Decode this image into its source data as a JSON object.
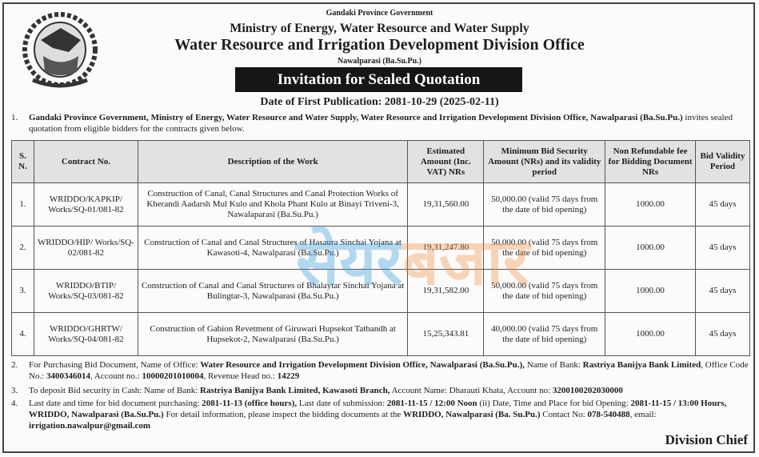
{
  "header": {
    "government": "Gandaki Province Government",
    "ministry": "Ministry of Energy, Water Resource and Water Supply",
    "office": "Water Resource and Irrigation Development Division Office",
    "location": "Nawalparasi (Ba.Su.Pu.)",
    "banner": "Invitation for Sealed Quotation",
    "publication_date": "Date of First Publication: 2081-10-29 (2025-02-11)"
  },
  "para1": {
    "num": "1.",
    "bold": "Gandaki Province Government, Ministry of Energy, Water Resource and Water Supply, Water Resource and Irrigation Development Division Office, Nawalparasi (Ba.Su.Pu.)",
    "rest": " invites sealed quotation from eligible bidders for the contracts given below."
  },
  "table": {
    "headers": [
      "S. N.",
      "Contract No.",
      "Description of the Work",
      "Estimated Amount (Inc. VAT) NRs",
      "Minimum Bid Security Amount (NRs) and its validity period",
      "Non Refundable fee for Bidding Document NRs",
      "Bid Validity Period"
    ],
    "rows": [
      [
        "1.",
        "WRIDDO/KAPKIP/ Works/SQ-01/081-82",
        "Construction of Canal, Canal Structures and Canal Protection Works of Kherandi Aadarsh Mul Kulo and Khola Phant Kulo at Binayi Triveni-3, Nawalaparasi (Ba.Su.Pu.)",
        "19,31,560.00",
        "50,000.00 (valid 75 days from the date of bid opening)",
        "1000.00",
        "45 days"
      ],
      [
        "2.",
        "WRIDDO/HIP/ Works/SQ-02/081-82",
        "Construction of Canal and Canal Structures of Hasaura Sinchai Yojana at Kawasoti-4, Nawalparasi (Ba.Su.Pu.)",
        "19,31,247.80",
        "50,000.00 (valid 75 days from the date of bid opening)",
        "1000.00",
        "45 days"
      ],
      [
        "3.",
        "WRIDDO/BTIP/ Works/SQ-03/081-82",
        "Construction of Canal and Canal Structures of Bhalaytar Sinchai Yojana at Bulingtar-3, Nawalparasi (Ba.Su.Pu.)",
        "19,31,582.00",
        "50,000.00 (valid 75 days from the date of bid opening)",
        "1000.00",
        "45 days"
      ],
      [
        "4.",
        "WRIDDO/GHRTW/ Works/SQ-04/081-82",
        "Construction of Gabion Revetment of Giruwari Hupsekot Tatbandh at Hupsekot-2, Nawalparasi (Ba.Su.Pu.)",
        "15,25,343.81",
        "40,000.00 (valid 75 days from the date of bid opening)",
        "1000.00",
        "45 days"
      ]
    ]
  },
  "para2": {
    "num": "2.",
    "s": [
      "For Purchasing Bid Document, Name of Office: ",
      "Water Resource and Irrigation Development Division Office, Nawalparasi (Ba.Su.Pu.),",
      " Name of Bank: ",
      "Rastriya Banijya Bank Limited",
      ", Office Code No.: ",
      "3400346014",
      ", Account no.: ",
      "10000201010004",
      ", Revenue Head no.: ",
      "14229"
    ]
  },
  "para3": {
    "num": "3.",
    "s": [
      "To deposit Bid security in Cash: Name of Bank: ",
      "Rastriya Banijya Bank Limited, Kawasoti Branch,",
      " Account Name: Dharauti Khata, Account no: ",
      "3200100202030000"
    ]
  },
  "para4": {
    "num": "4.",
    "s": [
      "Last date and time for bid document purchasing: ",
      "2081-11-13 (office hours),",
      " Last date of submission: ",
      "2081-11-15 / 12:00 Noon",
      " (ii) Date, Time and Place for bid Opening: ",
      "2081-11-15 / 13:00 Hours, WRIDDO, Nawalparasi (Ba.Su.Pu.)",
      " For detail information, please inspect the bidding documents at the ",
      "WRIDDO, Nawalparasi (Ba. Su.Pu.)",
      " Contact No: ",
      "078-540488",
      ", email: ",
      "irrigation.nawalpur@gmail.com"
    ]
  },
  "signature": "Division Chief",
  "watermark": {
    "part1": "सेयर",
    "part2": "बजार"
  }
}
